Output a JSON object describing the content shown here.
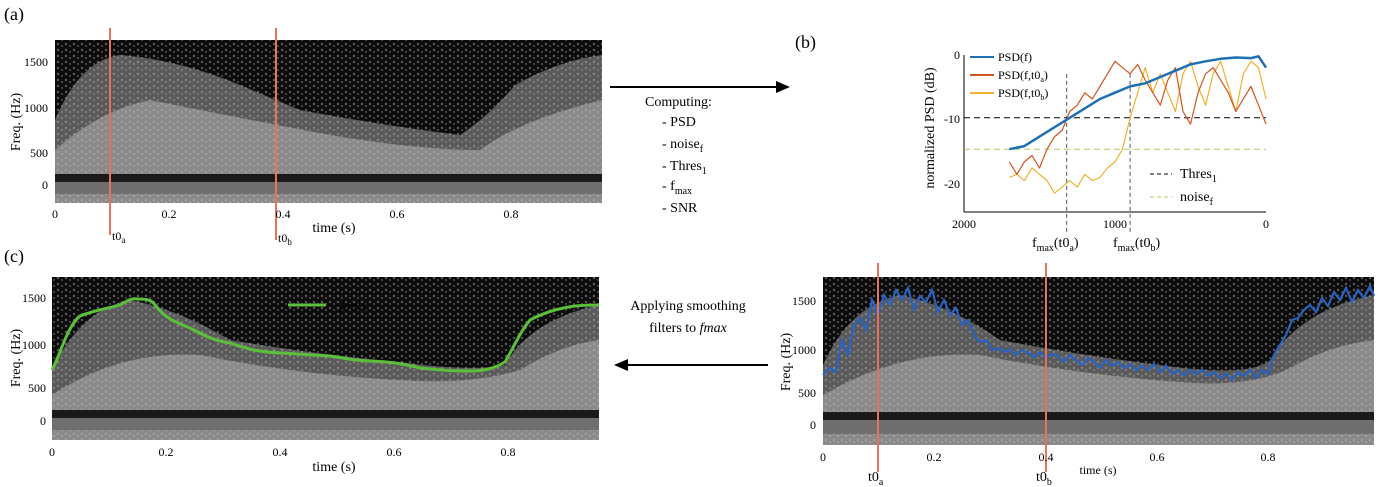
{
  "panels": {
    "a": "(a)",
    "b": "(b)",
    "c": "(c)"
  },
  "spectrogram_axes": {
    "ylabel": "Freq. (Hz)",
    "xlabel": "time (s)",
    "yticks": [
      "1500",
      "1000",
      "500",
      "0"
    ],
    "xticks": [
      "0",
      "0.2",
      "0.4",
      "0.6",
      "0.8"
    ]
  },
  "markers": {
    "t0a": "t0",
    "t0a_sub": "a",
    "t0b": "t0",
    "t0b_sub": "b"
  },
  "computing": {
    "title": "Computing:",
    "items": [
      {
        "base": "- PSD",
        "sub": ""
      },
      {
        "base": "- noise",
        "sub": "f"
      },
      {
        "base": "- Thres",
        "sub": "1"
      },
      {
        "base": "- f",
        "sub": "max"
      },
      {
        "base": "- SNR",
        "sub": ""
      }
    ]
  },
  "smoothing": {
    "line1": "Applying smoothing",
    "line2": "filters to ",
    "line2_italic": "fmax"
  },
  "fmax_legend": "fmax",
  "psd_plot": {
    "ylabel": "normalized PSD (dB)",
    "yticks": [
      "0",
      "-10",
      "-20"
    ],
    "xticks": [
      "2000",
      "1000",
      "0"
    ],
    "legend": [
      {
        "label": "PSD(f)",
        "color": "#1f6fb5"
      },
      {
        "label": "PSD(f,t0",
        "sub": "a",
        "color": "#d2541f"
      },
      {
        "label": "PSD(f,t0",
        "sub": "b",
        "color": "#f0b030"
      }
    ],
    "legend2": [
      {
        "label": "Thres",
        "sub": "1",
        "color": "#000000"
      },
      {
        "label": "noise",
        "sub": "f",
        "color": "#a8c96a"
      }
    ],
    "fmax_a": "f",
    "fmax_a_sub": "max",
    "fmax_a_arg": "(t0",
    "fmax_a_arg_sub": "a",
    "fmax_b": "f",
    "fmax_b_sub": "max",
    "fmax_b_arg": "(t0",
    "fmax_b_arg_sub": "b"
  },
  "chart_data": {
    "type": "line",
    "xlabel": "",
    "ylabel": "normalized PSD (dB)",
    "xlim": [
      2000,
      0
    ],
    "ylim": [
      -25,
      0
    ],
    "thres1": -10,
    "noise_f": -15,
    "series": [
      {
        "name": "PSD(f)",
        "x": [
          1700,
          1600,
          1500,
          1400,
          1300,
          1200,
          1100,
          1000,
          900,
          800,
          700,
          600,
          500,
          400,
          300,
          200,
          100,
          50,
          0
        ],
        "values": [
          -15,
          -14.5,
          -13,
          -11.5,
          -10,
          -8.5,
          -7,
          -6,
          -5,
          -4.5,
          -3.5,
          -2.5,
          -1.5,
          -1,
          -0.6,
          -0.4,
          -0.5,
          -0.2,
          -2
        ]
      },
      {
        "name": "PSD(f,t0a)",
        "x": [
          1700,
          1650,
          1600,
          1550,
          1500,
          1450,
          1400,
          1350,
          1300,
          1250,
          1200,
          1150,
          1100,
          1050,
          1000,
          950,
          900,
          850,
          800,
          750,
          700,
          650,
          600,
          550,
          500,
          450,
          400,
          350,
          300,
          250,
          200,
          150,
          100,
          50,
          0
        ],
        "values": [
          -17,
          -19,
          -17,
          -16,
          -18,
          -15,
          -13,
          -12,
          -9,
          -8,
          -6,
          -7,
          -5,
          -3,
          -1,
          -2,
          -3,
          -1.5,
          -4,
          -6,
          -8,
          -4,
          -2,
          -9,
          -11,
          -6,
          -3,
          -2,
          -4,
          -6,
          -9,
          -7,
          -5,
          -8,
          -11
        ]
      },
      {
        "name": "PSD(f,t0b)",
        "x": [
          1700,
          1650,
          1600,
          1550,
          1500,
          1450,
          1400,
          1350,
          1300,
          1250,
          1200,
          1150,
          1100,
          1050,
          1000,
          950,
          900,
          850,
          800,
          750,
          700,
          650,
          600,
          550,
          500,
          450,
          400,
          350,
          300,
          250,
          200,
          150,
          100,
          50,
          0
        ],
        "values": [
          -19.5,
          -19,
          -20,
          -18,
          -19,
          -20,
          -22,
          -21,
          -20,
          -21,
          -19,
          -20,
          -19.5,
          -18,
          -17,
          -15,
          -10,
          -6,
          -2,
          -6,
          -3,
          -6,
          -9,
          -3,
          -1,
          -5,
          -8,
          -3,
          -1,
          -5,
          -9,
          -3,
          -1,
          -2,
          -7
        ]
      }
    ]
  }
}
